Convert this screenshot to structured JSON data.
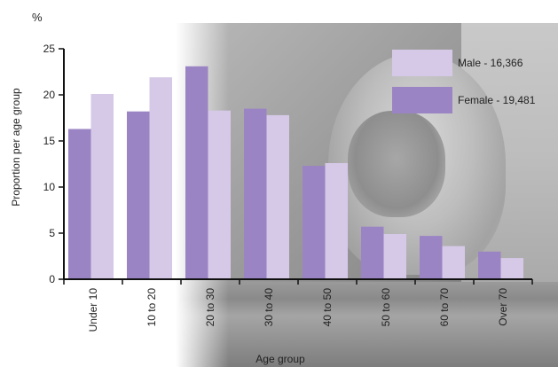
{
  "chart_data": {
    "type": "bar",
    "unit_label": "%",
    "xlabel": "Age group",
    "ylabel": "Proportion per age group",
    "ylim": [
      0,
      25
    ],
    "yticks": [
      "0",
      "5",
      "10",
      "15",
      "20",
      "25"
    ],
    "categories": [
      "Under 10",
      "10 to 20",
      "20 to 30",
      "30 to 40",
      "40 to 50",
      "50 to 60",
      "60 to 70",
      "Over 70"
    ],
    "series": [
      {
        "name": "Female - 19,481",
        "color": "#9b84c4",
        "values": [
          16.3,
          18.2,
          23.1,
          18.5,
          12.3,
          5.7,
          4.7,
          3.0
        ]
      },
      {
        "name": "Male - 16,366",
        "color": "#d6c9e8",
        "values": [
          20.1,
          21.9,
          18.3,
          17.8,
          12.6,
          4.9,
          3.6,
          2.3
        ]
      }
    ],
    "legend": [
      {
        "label": "Male - 16,366",
        "color": "#d6c9e8"
      },
      {
        "label": "Female - 19,481",
        "color": "#9b84c4"
      }
    ],
    "legend_position": "top-right",
    "grid": false
  }
}
